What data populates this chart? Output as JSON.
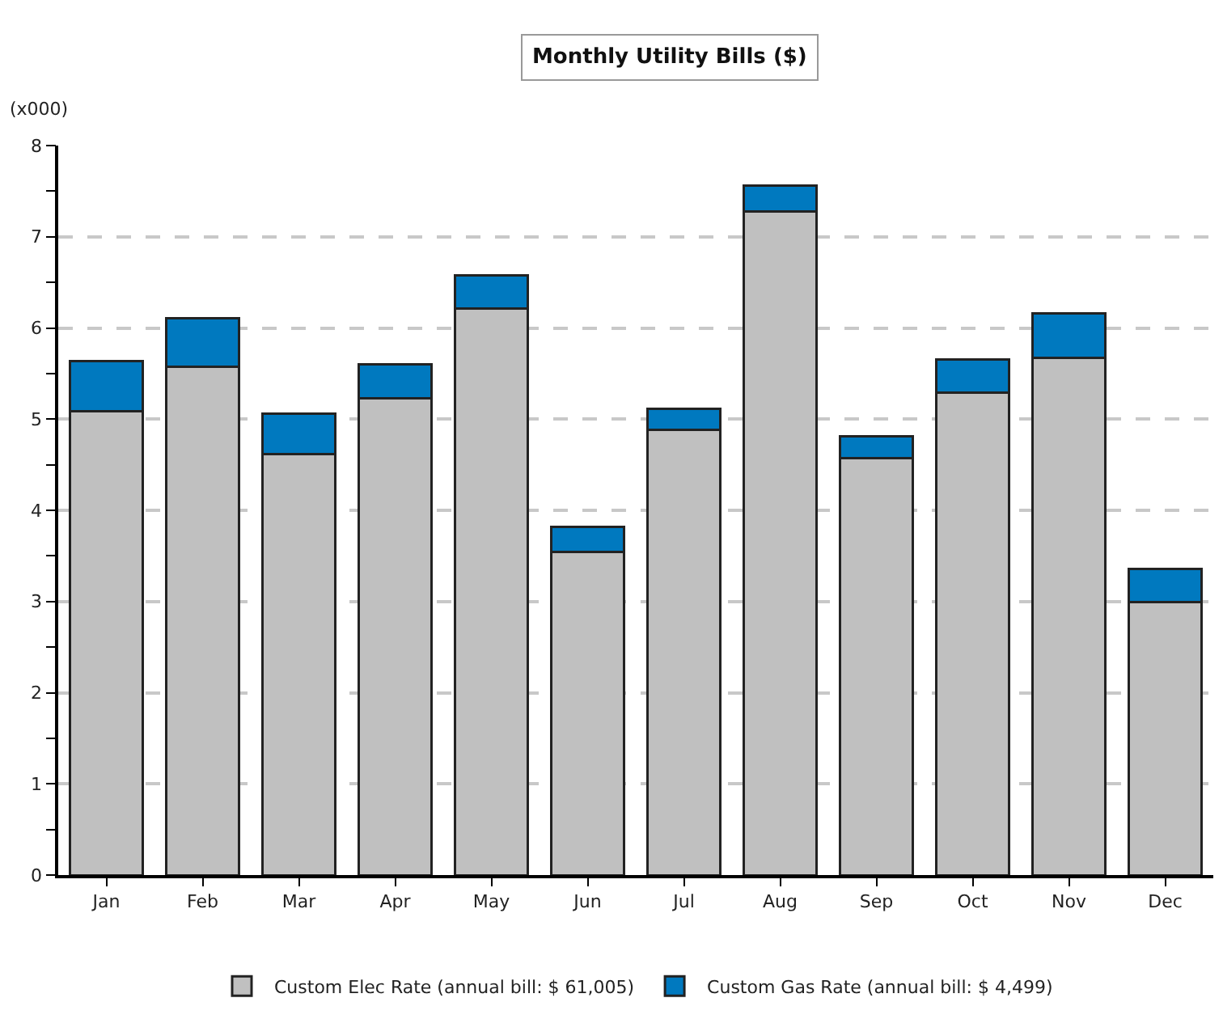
{
  "chart_data": {
    "type": "bar",
    "title": "Monthly Utility Bills ($)",
    "ylabel": "(x000)",
    "categories": [
      "Jan",
      "Feb",
      "Mar",
      "Apr",
      "May",
      "Jun",
      "Jul",
      "Aug",
      "Sep",
      "Oct",
      "Nov",
      "Dec"
    ],
    "stacked": true,
    "series": [
      {
        "name": "Custom Elec Rate (annual bill: $ 61,005)",
        "color": "#c0c0c0",
        "values": [
          5.09,
          5.57,
          4.62,
          5.23,
          6.21,
          3.54,
          4.88,
          7.28,
          4.57,
          5.29,
          5.67,
          2.99
        ]
      },
      {
        "name": "Custom Gas Rate (annual bill: $ 4,499)",
        "color": "#0079bf",
        "values": [
          0.55,
          0.54,
          0.44,
          0.37,
          0.37,
          0.28,
          0.23,
          0.28,
          0.24,
          0.36,
          0.49,
          0.37
        ]
      }
    ],
    "ylim": [
      0,
      8
    ],
    "yticks": [
      0,
      {
        "value": 0.5,
        "label": null
      },
      1,
      {
        "value": 1.5,
        "label": null
      },
      2,
      {
        "value": 2.5,
        "label": null
      },
      3,
      {
        "value": 3.5,
        "label": null
      },
      4,
      {
        "value": 4.5,
        "label": null
      },
      5,
      {
        "value": 5.5,
        "label": null
      },
      6,
      {
        "value": 6.5,
        "label": null
      },
      7,
      {
        "value": 7.5,
        "label": null
      },
      8
    ],
    "grid": "y",
    "legend": "bottom"
  }
}
